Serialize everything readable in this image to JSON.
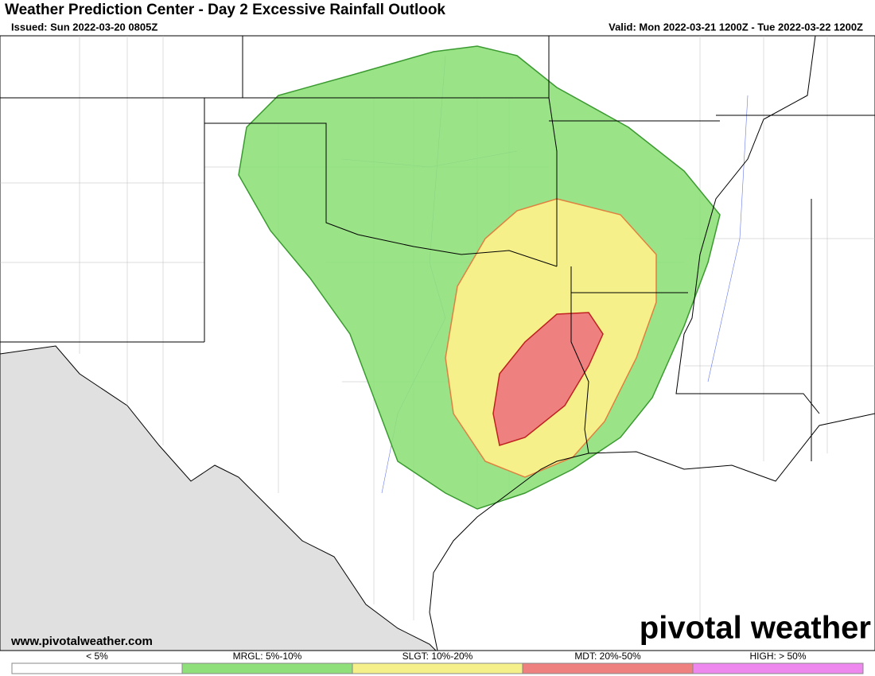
{
  "header": {
    "title": "Weather Prediction Center - Day 2 Excessive Rainfall Outlook",
    "issued": "Issued: Sun 2022-03-20 0805Z",
    "valid": "Valid: Mon 2022-03-21 1200Z - Tue 2022-03-22 1200Z"
  },
  "footer": {
    "website": "www.pivotalweather.com",
    "brand": "pivotal weather"
  },
  "legend": {
    "items": [
      {
        "label": "< 5%",
        "color": "#ffffff"
      },
      {
        "label": "MRGL: 5%-10%",
        "color": "#8fe07a"
      },
      {
        "label": "SLGT: 10%-20%",
        "color": "#f5f08a"
      },
      {
        "label": "MDT: 20%-50%",
        "color": "#ee8080"
      },
      {
        "label": "HIGH: > 50%",
        "color": "#ee88ee"
      }
    ]
  }
}
